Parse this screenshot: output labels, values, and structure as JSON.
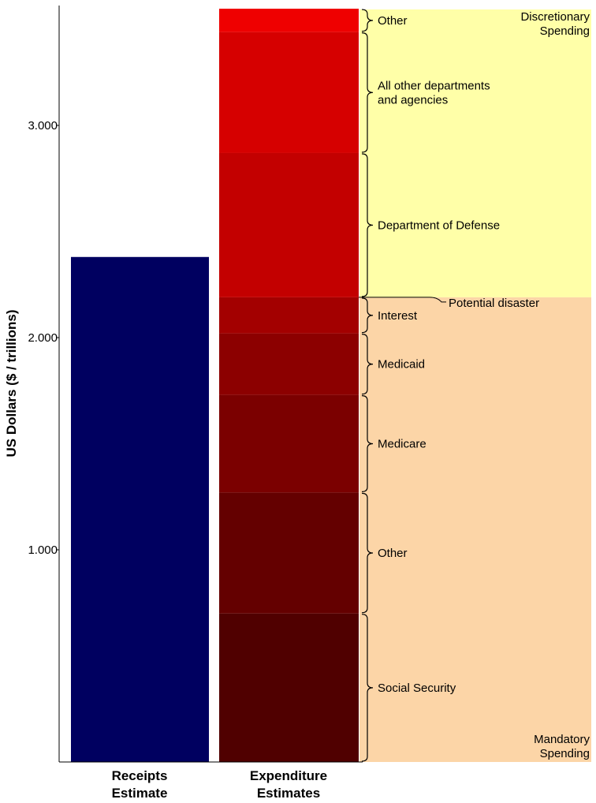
{
  "chart_data": {
    "type": "bar",
    "subtype": "stacked",
    "ylabel": "US Dollars ($ / trillions)",
    "ylim": [
      0,
      3.55
    ],
    "y_ticks": [
      {
        "value": 1.0,
        "label": "1.000"
      },
      {
        "value": 2.0,
        "label": "2.000"
      },
      {
        "value": 3.0,
        "label": "3.000"
      }
    ],
    "grid": false,
    "categories": [
      {
        "label_line1": "Receipts",
        "label_line2": "Estimate"
      },
      {
        "label_line1": "Expenditure",
        "label_line2": "Estimates"
      }
    ],
    "receipts": {
      "value": 2.38,
      "color": "#000060"
    },
    "expenditure_segments": [
      {
        "label": "Social Security",
        "value": 0.7,
        "color": "#500000"
      },
      {
        "label": "Other",
        "value": 0.57,
        "color": "#640000"
      },
      {
        "label": "Medicare",
        "value": 0.46,
        "color": "#7b0000"
      },
      {
        "label": "Medicaid",
        "value": 0.29,
        "color": "#8c0000"
      },
      {
        "label": "Interest",
        "value": 0.17,
        "color": "#a30000"
      },
      {
        "label": "Department of Defense",
        "value": 0.68,
        "color": "#c30000"
      },
      {
        "label": "All other departments and agencies",
        "value": 0.57,
        "color": "#d60000"
      },
      {
        "label": "Other",
        "value": 0.11,
        "color": "#ef0000"
      }
    ],
    "regions": [
      {
        "label_line1": "Mandatory",
        "label_line2": "Spending",
        "from": 0,
        "to": 2.19,
        "color": "#fcd5a7"
      },
      {
        "label_line1": "Discretionary",
        "label_line2": "Spending",
        "from": 2.19,
        "to": 3.55,
        "color": "#ffffa8"
      }
    ],
    "annotations": [
      {
        "label": "Potential disaster",
        "value": 2.19
      }
    ]
  }
}
